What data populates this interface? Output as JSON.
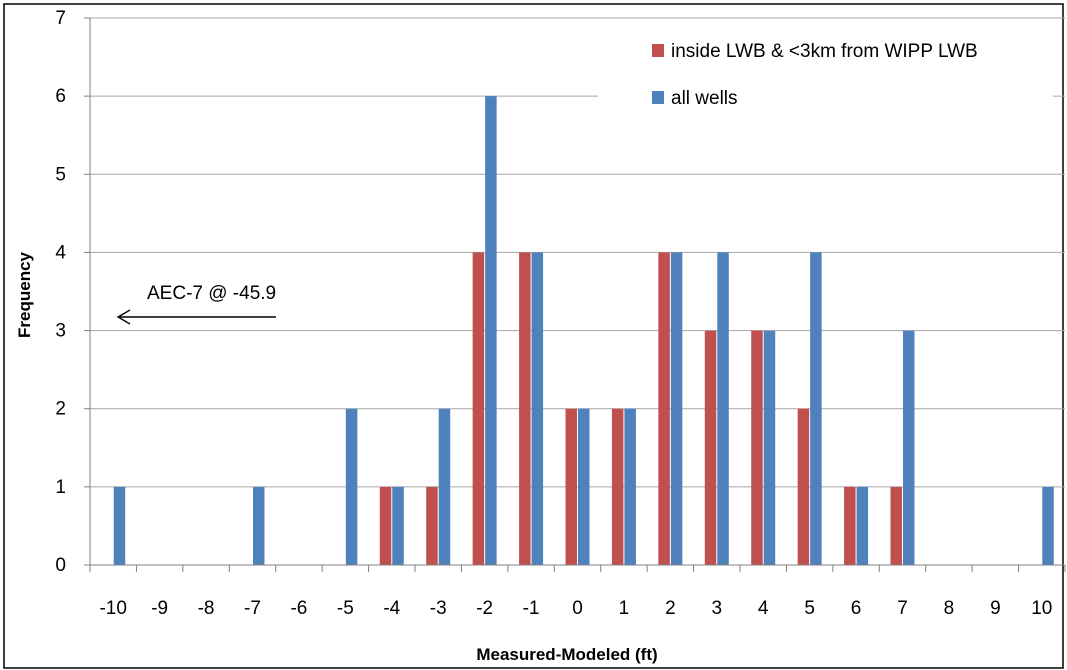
{
  "chart_data": {
    "type": "bar",
    "title": "",
    "xlabel": "Measured-Modeled (ft)",
    "ylabel": "Frequency",
    "categories": [
      "-10",
      "-9",
      "-8",
      "-7",
      "-6",
      "-5",
      "-4",
      "-3",
      "-2",
      "-1",
      "0",
      "1",
      "2",
      "3",
      "4",
      "5",
      "6",
      "7",
      "8",
      "9",
      "10"
    ],
    "series": [
      {
        "name": "inside LWB & <3km from WIPP LWB",
        "color": "#C0504D",
        "values": [
          0,
          0,
          0,
          0,
          0,
          0,
          1,
          1,
          4,
          4,
          2,
          2,
          4,
          3,
          3,
          2,
          1,
          1,
          0,
          0,
          0
        ]
      },
      {
        "name": "all wells",
        "color": "#4F81BD",
        "values": [
          1,
          0,
          0,
          1,
          0,
          2,
          1,
          2,
          6,
          4,
          2,
          2,
          4,
          4,
          3,
          4,
          1,
          3,
          0,
          0,
          1
        ]
      }
    ],
    "ylim": [
      0,
      7
    ],
    "yticks": [
      0,
      1,
      2,
      3,
      4,
      5,
      6,
      7
    ],
    "grid": true,
    "legend_position": "top-right",
    "annotation": {
      "text": "AEC-7 @ -45.9",
      "arrow_direction": "left"
    }
  },
  "colors": {
    "gridline": "#A6A6A6",
    "axis": "#808080",
    "border": "#000000",
    "text": "#000000"
  }
}
